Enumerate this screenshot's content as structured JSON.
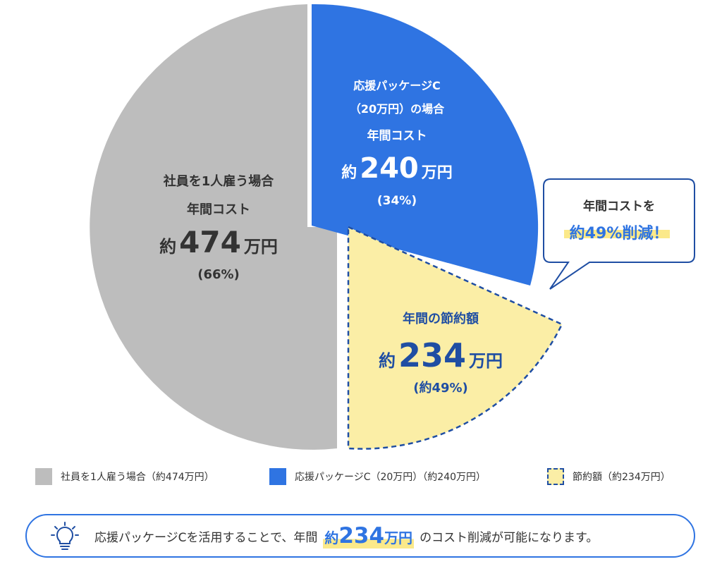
{
  "chart_data": {
    "type": "pie",
    "slices": [
      {
        "name": "社員を1人雇う場合",
        "value": 474,
        "percent": 66,
        "color": "#bdbdbd"
      },
      {
        "name": "応援パッケージC（20万円）の場合",
        "value": 240,
        "percent": 34,
        "color": "#2f74e2"
      },
      {
        "name": "節約額",
        "value": 234,
        "percent": 49,
        "color": "#fbeea6"
      }
    ],
    "labels": {
      "gray": {
        "line1": "社員を1人雇う場合",
        "line2": "年間コスト",
        "pre": "約",
        "value": "474",
        "unit": "万円",
        "pct": "(66%)"
      },
      "blue": {
        "line1": "応援パッケージC",
        "line2": "（20万円）の場合",
        "line3": "年間コスト",
        "pre": "約",
        "value": "240",
        "unit": "万円",
        "pct": "(34%)"
      },
      "yellow": {
        "line1": "年間の節約額",
        "pre": "約",
        "value": "234",
        "unit": "万円",
        "pct": "(約49%)"
      }
    },
    "callout": {
      "line1": "年間コストを",
      "line2": "約49%削減！"
    },
    "legend": [
      {
        "label": "社員を1人雇う場合（約474万円）",
        "style": "gray"
      },
      {
        "label": "応援パッケージC（20万円）（約240万円）",
        "style": "blue"
      },
      {
        "label": "節約額（約234万円）",
        "style": "yellow"
      }
    ]
  },
  "summary": {
    "before": "応援パッケージCを活用することで、年間",
    "pre": "約",
    "value": "234",
    "unit": "万円",
    "after": "のコスト削減が可能になります。"
  },
  "icons": {
    "summary": "lightbulb-icon"
  },
  "colors": {
    "gray": "#bdbdbd",
    "blue": "#2f74e2",
    "yellow": "#fbeea6",
    "navy": "#1f4ea3"
  }
}
